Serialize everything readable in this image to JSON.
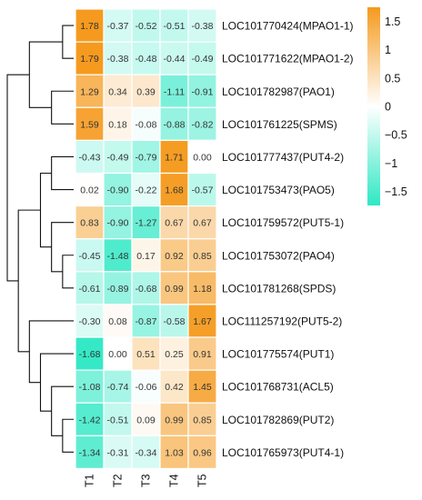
{
  "chart_data": {
    "type": "heatmap",
    "columns": [
      "T1",
      "T2",
      "T3",
      "T4",
      "T5"
    ],
    "rows": [
      "LOC101770424(MPAO1-1)",
      "LOC101771622(MPAO1-2)",
      "LOC101782987(PAO1)",
      "LOC101761225(SPMS)",
      "LOC101777437(PUT4-2)",
      "LOC101753473(PAO5)",
      "LOC101759572(PUT5-1)",
      "LOC101753072(PAO4)",
      "LOC101781268(SPDS)",
      "LOC111257192(PUT5-2)",
      "LOC101775574(PUT1)",
      "LOC101768731(ACL5)",
      "LOC101782869(PUT2)",
      "LOC101765973(PUT4-1)"
    ],
    "values": [
      [
        1.78,
        -0.37,
        -0.52,
        -0.51,
        -0.38
      ],
      [
        1.79,
        -0.38,
        -0.48,
        -0.44,
        -0.49
      ],
      [
        1.29,
        0.34,
        0.39,
        -1.11,
        -0.91
      ],
      [
        1.59,
        0.18,
        -0.08,
        -0.88,
        -0.82
      ],
      [
        -0.43,
        -0.49,
        -0.79,
        1.71,
        0.0
      ],
      [
        0.02,
        -0.9,
        -0.22,
        1.68,
        -0.57
      ],
      [
        0.83,
        -0.9,
        -1.27,
        0.67,
        0.67
      ],
      [
        -0.45,
        -1.48,
        0.17,
        0.92,
        0.85
      ],
      [
        -0.61,
        -0.89,
        -0.68,
        0.99,
        1.18
      ],
      [
        -0.3,
        0.08,
        -0.87,
        -0.58,
        1.67
      ],
      [
        -1.68,
        0.0,
        0.51,
        0.25,
        0.91
      ],
      [
        -1.08,
        -0.74,
        -0.06,
        0.42,
        1.45
      ],
      [
        -1.42,
        -0.51,
        0.09,
        0.99,
        0.85
      ],
      [
        -1.34,
        -0.31,
        -0.34,
        1.03,
        0.96
      ]
    ],
    "value_labels": [
      [
        "1.78",
        "-0.37",
        "-0.52",
        "-0.51",
        "-0.38"
      ],
      [
        "1.79",
        "-0.38",
        "-0.48",
        "-0.44",
        "-0.49"
      ],
      [
        "1.29",
        "0.34",
        "0.39",
        "-1.11",
        "-0.91"
      ],
      [
        "1.59",
        "0.18",
        "-0.08",
        "-0.88",
        "-0.82"
      ],
      [
        "-0.43",
        "-0.49",
        "-0.79",
        "1.71",
        "0.00"
      ],
      [
        "0.02",
        "-0.90",
        "-0.22",
        "1.68",
        "-0.57"
      ],
      [
        "0.83",
        "-0.90",
        "-1.27",
        "0.67",
        "0.67"
      ],
      [
        "-0.45",
        "-1.48",
        "0.17",
        "0.92",
        "0.85"
      ],
      [
        "-0.61",
        "-0.89",
        "-0.68",
        "0.99",
        "1.18"
      ],
      [
        "-0.30",
        "0.08",
        "-0.87",
        "-0.58",
        "1.67"
      ],
      [
        "-1.68",
        "0.00",
        "0.51",
        "0.25",
        "0.91"
      ],
      [
        "-1.08",
        "-0.74",
        "-0.06",
        "0.42",
        "1.45"
      ],
      [
        "-1.42",
        "-0.51",
        "0.09",
        "0.99",
        "0.85"
      ],
      [
        "-1.34",
        "-0.31",
        "-0.34",
        "1.03",
        "0.96"
      ]
    ],
    "color_scale": {
      "range": [
        -1.75,
        1.75
      ],
      "colors": {
        "low": "#2ee8c4",
        "mid": "#ffffff",
        "high": "#f59a1e"
      },
      "ticks": [
        1.5,
        1,
        0.5,
        0,
        -0.5,
        -1,
        -1.5
      ],
      "tick_labels": [
        "1.5",
        "1",
        "0.5",
        "0",
        "−0.5",
        "−1",
        "−1.5"
      ]
    },
    "row_dendrogram": {
      "leaf_order": [
        0,
        1,
        2,
        3,
        4,
        5,
        6,
        7,
        8,
        9,
        10,
        11,
        12,
        13
      ],
      "merges": [
        [
          0,
          1,
          1
        ],
        [
          2,
          3,
          2
        ],
        [
          14,
          15,
          4
        ],
        [
          4,
          5,
          2
        ],
        [
          7,
          8,
          1
        ],
        [
          6,
          18,
          2
        ],
        [
          17,
          19,
          3
        ],
        [
          12,
          13,
          1
        ],
        [
          11,
          21,
          2
        ],
        [
          10,
          22,
          3
        ],
        [
          9,
          23,
          4
        ],
        [
          20,
          24,
          5
        ],
        [
          16,
          25,
          6
        ]
      ]
    },
    "legend": "right",
    "grid": true
  }
}
